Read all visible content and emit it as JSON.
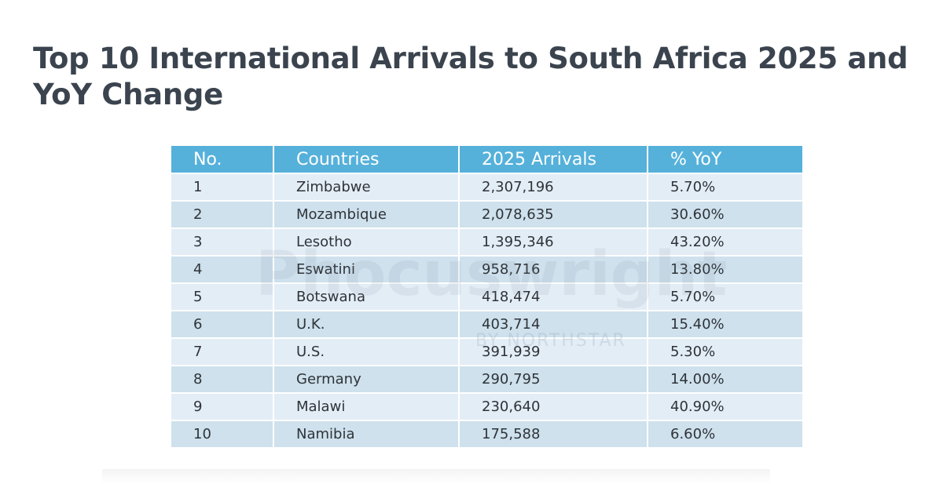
{
  "header": {
    "title": "Top 10 International Arrivals to South Africa 2025 and YoY Change"
  },
  "watermark": {
    "brand": "Phocuswright",
    "byline": "BY NORTHSTAR"
  },
  "table": {
    "columns": [
      "No.",
      "Countries",
      "2025 Arrivals",
      "% YoY"
    ],
    "rows": [
      [
        "1",
        "Zimbabwe",
        "2,307,196",
        "5.70%"
      ],
      [
        "2",
        "Mozambique",
        "2,078,635",
        "30.60%"
      ],
      [
        "3",
        "Lesotho",
        "1,395,346",
        "43.20%"
      ],
      [
        "4",
        "Eswatini",
        "958,716",
        "13.80%"
      ],
      [
        "5",
        "Botswana",
        "418,474",
        "5.70%"
      ],
      [
        "6",
        "U.K.",
        "403,714",
        "15.40%"
      ],
      [
        "7",
        "U.S.",
        "391,939",
        "5.30%"
      ],
      [
        "8",
        "Germany",
        "290,795",
        "14.00%"
      ],
      [
        "9",
        "Malawi",
        "230,640",
        "40.90%"
      ],
      [
        "10",
        "Namibia",
        "175,588",
        "6.60%"
      ]
    ]
  }
}
